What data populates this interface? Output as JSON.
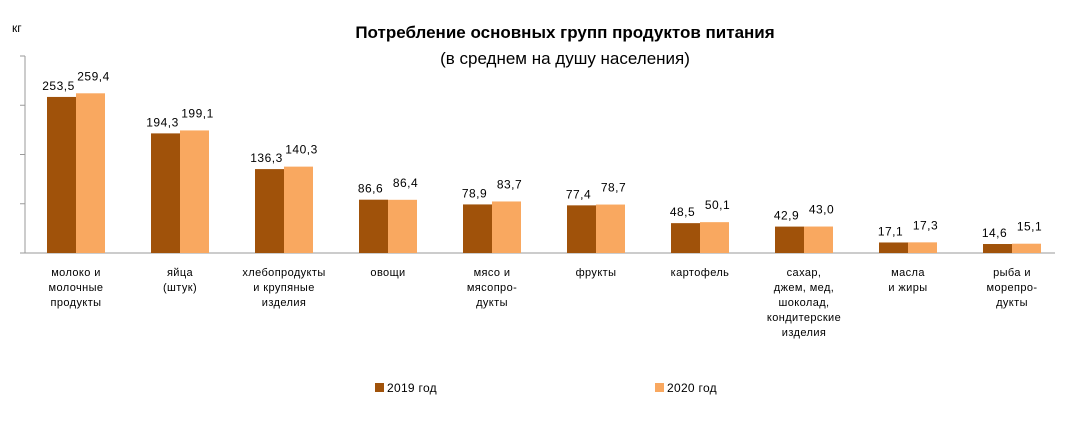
{
  "chart_data": {
    "type": "bar",
    "title": "Потребление основных групп продуктов питания",
    "subtitle": "(в среднем на душу населения)",
    "ylabel": "кг",
    "ylim": [
      0,
      320
    ],
    "grid": false,
    "legend_position": "bottom",
    "categories": [
      [
        "молоко и",
        "молочные",
        "продукты"
      ],
      [
        "яйца",
        "(штук)"
      ],
      [
        "хлебопродукты",
        "и крупяные",
        "изделия"
      ],
      [
        "овощи"
      ],
      [
        "мясо и",
        "мясопро-",
        "дукты"
      ],
      [
        "фрукты"
      ],
      [
        "картофель"
      ],
      [
        "сахар,",
        "джем, мед,",
        "шоколад,",
        "кондитерские",
        "изделия"
      ],
      [
        "масла",
        "и жиры"
      ],
      [
        "рыба и",
        "морепро-",
        "дукты"
      ]
    ],
    "series": [
      {
        "name": "2019 год",
        "color": "#A0520A",
        "values": [
          253.5,
          194.3,
          136.3,
          86.6,
          78.9,
          77.4,
          48.5,
          42.9,
          17.1,
          14.6
        ],
        "labels": [
          "253,5",
          "194,3",
          "136,3",
          "86,6",
          "78,9",
          "77,4",
          "48,5",
          "42,9",
          "17,1",
          "14,6"
        ]
      },
      {
        "name": "2020 год",
        "color": "#F9A860",
        "values": [
          259.4,
          199.1,
          140.3,
          86.4,
          83.7,
          78.7,
          50.1,
          43.0,
          17.3,
          15.1
        ],
        "labels": [
          "259,4",
          "199,1",
          "140,3",
          "86,4",
          "83,7",
          "78,7",
          "50,1",
          "43,0",
          "17,3",
          "15,1"
        ]
      }
    ]
  }
}
